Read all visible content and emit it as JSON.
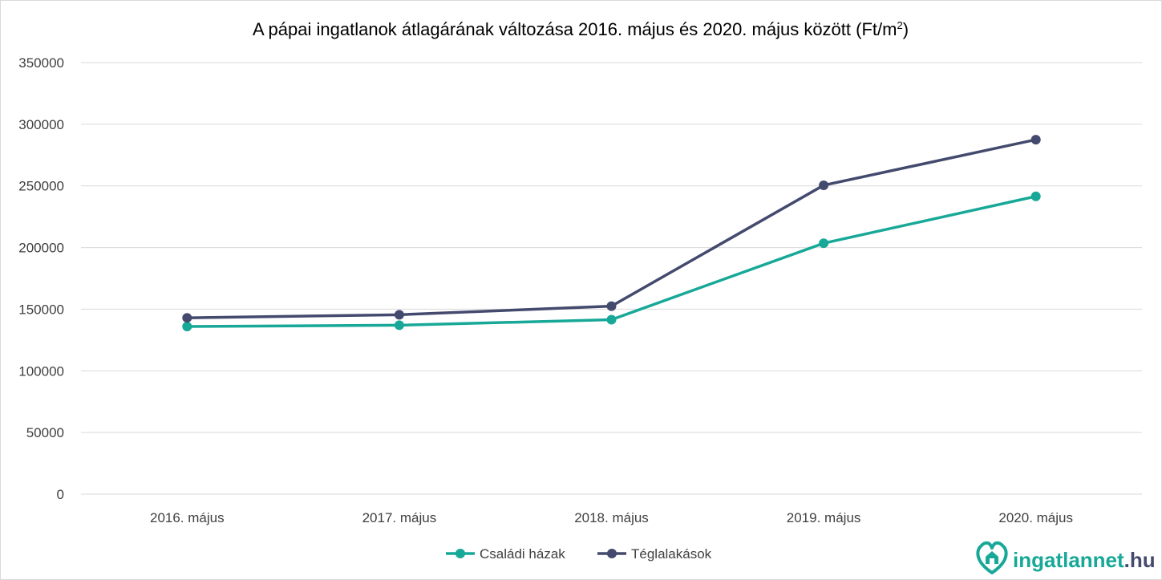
{
  "chart_data": {
    "type": "line",
    "title": "A pápai ingatlanok átlagárának változása 2016. május és 2020. május között (Ft/m",
    "title_superscript": "2",
    "title_suffix": ")",
    "categories": [
      "2016. május",
      "2017. május",
      "2018. május",
      "2019. május",
      "2020. május"
    ],
    "series": [
      {
        "name": "Családi házak",
        "color": "#17a898",
        "values": [
          136000,
          137000,
          141500,
          203500,
          241500
        ]
      },
      {
        "name": "Téglalakások",
        "color": "#444a6e",
        "values": [
          143000,
          145500,
          152500,
          250500,
          287500
        ]
      }
    ],
    "ylim": [
      0,
      350000
    ],
    "yticks": [
      "0",
      "50000",
      "100000",
      "150000",
      "200000",
      "250000",
      "300000",
      "350000"
    ],
    "grid": true,
    "legend_position": "bottom"
  },
  "brand": {
    "name": "ingatlannet",
    "tld": ".hu",
    "color": "#17a898",
    "dark_color": "#444a6e",
    "icon": "heart-house-icon"
  }
}
